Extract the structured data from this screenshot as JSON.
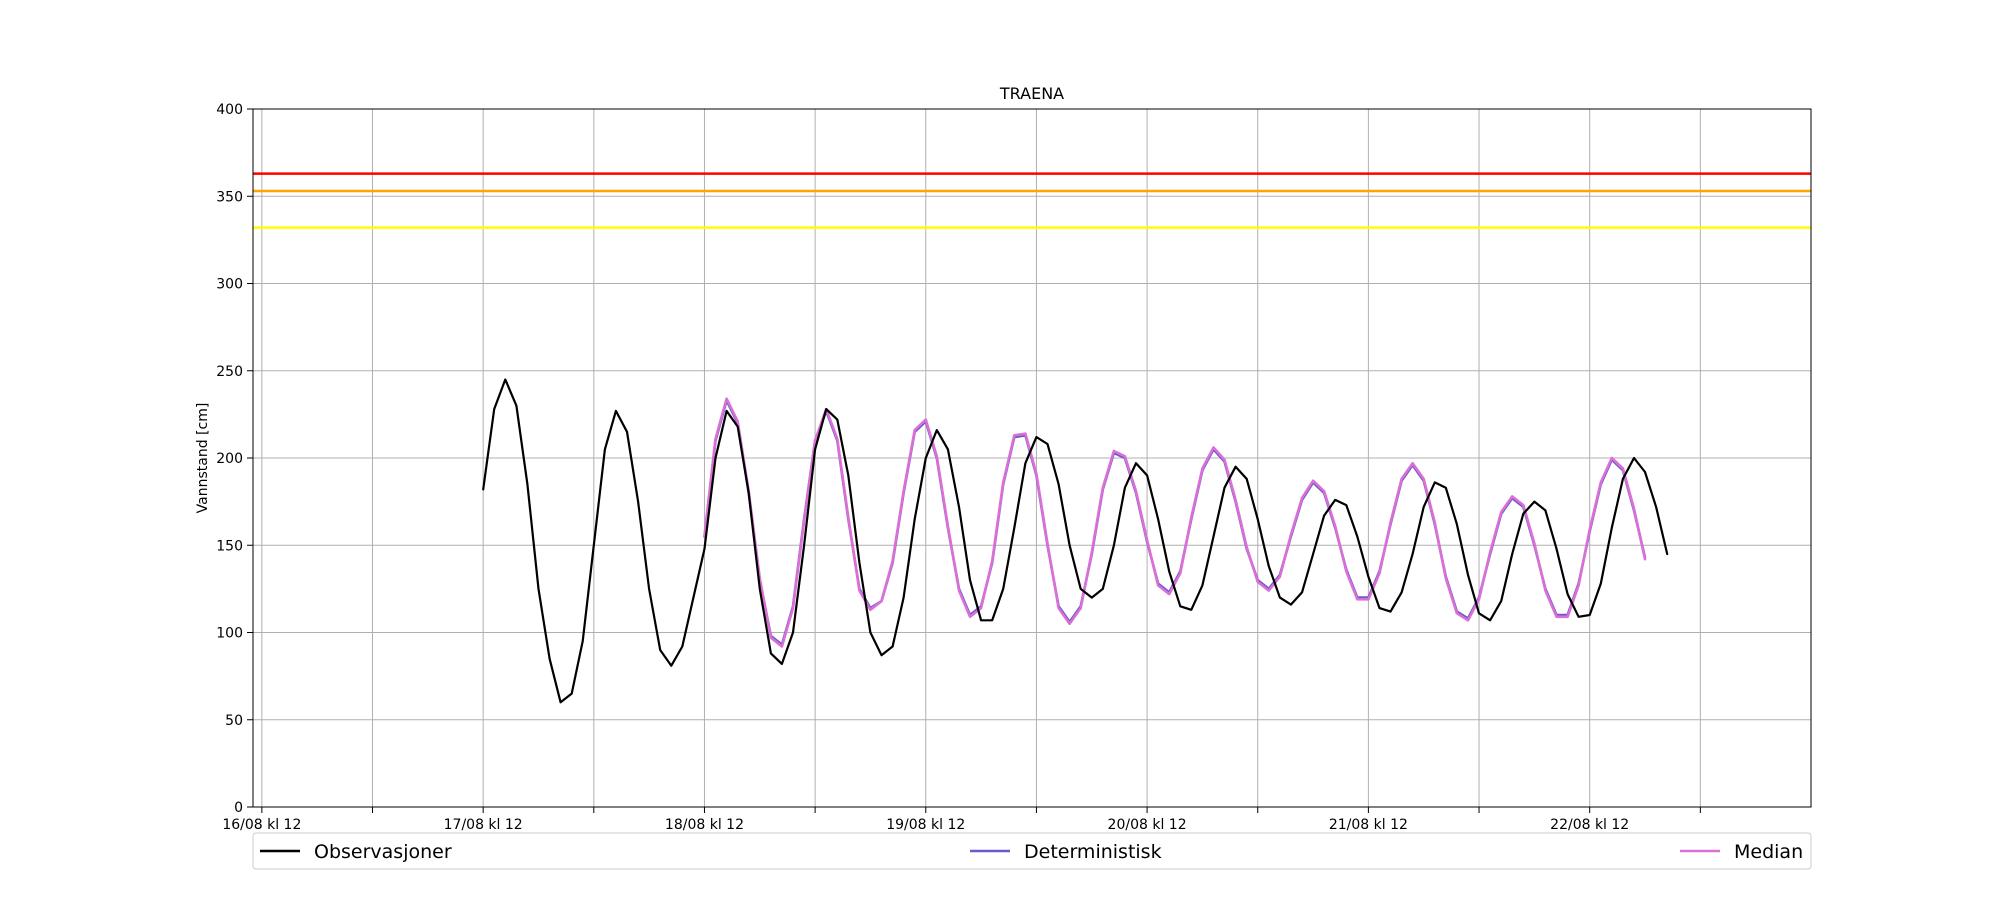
{
  "chart_data": {
    "type": "line",
    "title": "TRAENA",
    "xlabel": "",
    "ylabel": "Vannstand [cm]",
    "ylim": [
      0,
      400
    ],
    "yticks": [
      0,
      50,
      100,
      150,
      200,
      250,
      300,
      350,
      400
    ],
    "xlim": [
      -0.04,
      7.0
    ],
    "xticks": [
      {
        "x": 0,
        "label": "16/08 kl 12"
      },
      {
        "x": 0.5,
        "label": ""
      },
      {
        "x": 1,
        "label": "17/08 kl 12"
      },
      {
        "x": 1.5,
        "label": ""
      },
      {
        "x": 2,
        "label": "18/08 kl 12"
      },
      {
        "x": 2.5,
        "label": ""
      },
      {
        "x": 3,
        "label": "19/08 kl 12"
      },
      {
        "x": 3.5,
        "label": ""
      },
      {
        "x": 4,
        "label": "20/08 kl 12"
      },
      {
        "x": 4.5,
        "label": ""
      },
      {
        "x": 5,
        "label": "21/08 kl 12"
      },
      {
        "x": 5.5,
        "label": ""
      },
      {
        "x": 6,
        "label": "22/08 kl 12"
      },
      {
        "x": 6.5,
        "label": ""
      }
    ],
    "grid": true,
    "legend_position": "bottom",
    "thresholds": [
      {
        "value": 363,
        "color": "#ff0000"
      },
      {
        "value": 353,
        "color": "#ffa500"
      },
      {
        "value": 332,
        "color": "#ffff00"
      }
    ],
    "series": [
      {
        "name": "Observasjoner",
        "color": "#000000",
        "points": [
          [
            1.0,
            182
          ],
          [
            1.05,
            228
          ],
          [
            1.1,
            245
          ],
          [
            1.15,
            230
          ],
          [
            1.2,
            185
          ],
          [
            1.25,
            125
          ],
          [
            1.3,
            85
          ],
          [
            1.35,
            60
          ],
          [
            1.4,
            65
          ],
          [
            1.45,
            95
          ],
          [
            1.5,
            150
          ],
          [
            1.55,
            205
          ],
          [
            1.6,
            227
          ],
          [
            1.65,
            215
          ],
          [
            1.7,
            175
          ],
          [
            1.75,
            125
          ],
          [
            1.8,
            90
          ],
          [
            1.85,
            81
          ],
          [
            1.9,
            92
          ],
          [
            1.95,
            120
          ],
          [
            2.0,
            148
          ],
          [
            2.05,
            200
          ],
          [
            2.1,
            227
          ],
          [
            2.15,
            218
          ],
          [
            2.2,
            180
          ],
          [
            2.25,
            125
          ],
          [
            2.3,
            88
          ],
          [
            2.35,
            82
          ],
          [
            2.4,
            100
          ],
          [
            2.45,
            150
          ],
          [
            2.5,
            205
          ],
          [
            2.55,
            228
          ],
          [
            2.6,
            222
          ],
          [
            2.65,
            190
          ],
          [
            2.7,
            140
          ],
          [
            2.75,
            100
          ],
          [
            2.8,
            87
          ],
          [
            2.85,
            92
          ],
          [
            2.9,
            120
          ],
          [
            2.95,
            165
          ],
          [
            3.0,
            200
          ],
          [
            3.05,
            216
          ],
          [
            3.1,
            205
          ],
          [
            3.15,
            172
          ],
          [
            3.2,
            130
          ],
          [
            3.25,
            107
          ],
          [
            3.3,
            107
          ],
          [
            3.35,
            125
          ],
          [
            3.4,
            160
          ],
          [
            3.45,
            197
          ],
          [
            3.5,
            212
          ],
          [
            3.55,
            208
          ],
          [
            3.6,
            185
          ],
          [
            3.65,
            150
          ],
          [
            3.7,
            125
          ],
          [
            3.75,
            120
          ],
          [
            3.8,
            125
          ],
          [
            3.85,
            150
          ],
          [
            3.9,
            183
          ],
          [
            3.95,
            197
          ],
          [
            4.0,
            190
          ],
          [
            4.05,
            165
          ],
          [
            4.1,
            135
          ],
          [
            4.15,
            115
          ],
          [
            4.2,
            113
          ],
          [
            4.25,
            127
          ],
          [
            4.3,
            155
          ],
          [
            4.35,
            183
          ],
          [
            4.4,
            195
          ],
          [
            4.45,
            188
          ],
          [
            4.5,
            165
          ],
          [
            4.55,
            138
          ],
          [
            4.6,
            120
          ],
          [
            4.65,
            116
          ],
          [
            4.7,
            123
          ],
          [
            4.75,
            145
          ],
          [
            4.8,
            167
          ],
          [
            4.85,
            176
          ],
          [
            4.9,
            173
          ],
          [
            4.95,
            155
          ],
          [
            5.0,
            132
          ],
          [
            5.05,
            114
          ],
          [
            5.1,
            112
          ],
          [
            5.15,
            123
          ],
          [
            5.2,
            145
          ],
          [
            5.25,
            172
          ],
          [
            5.3,
            186
          ],
          [
            5.35,
            183
          ],
          [
            5.4,
            162
          ],
          [
            5.45,
            133
          ],
          [
            5.5,
            111
          ],
          [
            5.55,
            107
          ],
          [
            5.6,
            118
          ],
          [
            5.65,
            145
          ],
          [
            5.7,
            168
          ],
          [
            5.75,
            175
          ],
          [
            5.8,
            170
          ],
          [
            5.85,
            148
          ],
          [
            5.9,
            122
          ],
          [
            5.95,
            109
          ],
          [
            6.0,
            110
          ],
          [
            6.05,
            128
          ],
          [
            6.1,
            160
          ],
          [
            6.15,
            188
          ],
          [
            6.2,
            200
          ],
          [
            6.25,
            192
          ],
          [
            6.3,
            172
          ],
          [
            6.35,
            145
          ]
        ]
      },
      {
        "name": "Deterministisk",
        "color": "#6a5acd",
        "points": [
          [
            2.0,
            155
          ],
          [
            2.05,
            210
          ],
          [
            2.1,
            233
          ],
          [
            2.15,
            220
          ],
          [
            2.2,
            180
          ],
          [
            2.25,
            130
          ],
          [
            2.3,
            98
          ],
          [
            2.35,
            93
          ],
          [
            2.4,
            115
          ],
          [
            2.45,
            165
          ],
          [
            2.5,
            210
          ],
          [
            2.55,
            227
          ],
          [
            2.6,
            210
          ],
          [
            2.65,
            165
          ],
          [
            2.7,
            125
          ],
          [
            2.75,
            114
          ],
          [
            2.8,
            118
          ],
          [
            2.85,
            140
          ],
          [
            2.9,
            180
          ],
          [
            2.95,
            215
          ],
          [
            3.0,
            221
          ],
          [
            3.05,
            200
          ],
          [
            3.1,
            160
          ],
          [
            3.15,
            125
          ],
          [
            3.2,
            110
          ],
          [
            3.25,
            115
          ],
          [
            3.3,
            140
          ],
          [
            3.35,
            185
          ],
          [
            3.4,
            212
          ],
          [
            3.45,
            213
          ],
          [
            3.5,
            190
          ],
          [
            3.55,
            150
          ],
          [
            3.6,
            115
          ],
          [
            3.65,
            106
          ],
          [
            3.7,
            115
          ],
          [
            3.75,
            145
          ],
          [
            3.8,
            182
          ],
          [
            3.85,
            203
          ],
          [
            3.9,
            200
          ],
          [
            3.95,
            180
          ],
          [
            4.0,
            152
          ],
          [
            4.05,
            128
          ],
          [
            4.1,
            123
          ],
          [
            4.15,
            135
          ],
          [
            4.2,
            165
          ],
          [
            4.25,
            193
          ],
          [
            4.3,
            205
          ],
          [
            4.35,
            198
          ],
          [
            4.4,
            175
          ],
          [
            4.45,
            148
          ],
          [
            4.5,
            130
          ],
          [
            4.55,
            125
          ],
          [
            4.6,
            133
          ],
          [
            4.65,
            155
          ],
          [
            4.7,
            176
          ],
          [
            4.75,
            186
          ],
          [
            4.8,
            180
          ],
          [
            4.85,
            160
          ],
          [
            4.9,
            136
          ],
          [
            4.95,
            120
          ],
          [
            5.0,
            120
          ],
          [
            5.05,
            135
          ],
          [
            5.1,
            162
          ],
          [
            5.15,
            187
          ],
          [
            5.2,
            196
          ],
          [
            5.25,
            187
          ],
          [
            5.3,
            162
          ],
          [
            5.35,
            132
          ],
          [
            5.4,
            112
          ],
          [
            5.45,
            108
          ],
          [
            5.5,
            120
          ],
          [
            5.55,
            145
          ],
          [
            5.6,
            168
          ],
          [
            5.65,
            177
          ],
          [
            5.7,
            172
          ],
          [
            5.75,
            150
          ],
          [
            5.8,
            125
          ],
          [
            5.85,
            110
          ],
          [
            5.9,
            110
          ],
          [
            5.95,
            128
          ],
          [
            6.0,
            158
          ],
          [
            6.05,
            185
          ],
          [
            6.1,
            199
          ],
          [
            6.15,
            193
          ],
          [
            6.2,
            170
          ],
          [
            6.25,
            143
          ]
        ]
      },
      {
        "name": "Median",
        "color": "#da70d6",
        "points": [
          [
            2.0,
            155
          ],
          [
            2.05,
            211
          ],
          [
            2.1,
            234
          ],
          [
            2.15,
            221
          ],
          [
            2.2,
            181
          ],
          [
            2.25,
            131
          ],
          [
            2.3,
            97
          ],
          [
            2.35,
            92
          ],
          [
            2.4,
            114
          ],
          [
            2.45,
            164
          ],
          [
            2.5,
            210
          ],
          [
            2.55,
            228
          ],
          [
            2.6,
            211
          ],
          [
            2.65,
            166
          ],
          [
            2.7,
            124
          ],
          [
            2.75,
            113
          ],
          [
            2.8,
            118
          ],
          [
            2.85,
            141
          ],
          [
            2.9,
            181
          ],
          [
            2.95,
            216
          ],
          [
            3.0,
            222
          ],
          [
            3.05,
            201
          ],
          [
            3.1,
            161
          ],
          [
            3.15,
            124
          ],
          [
            3.2,
            109
          ],
          [
            3.25,
            114
          ],
          [
            3.3,
            141
          ],
          [
            3.35,
            186
          ],
          [
            3.4,
            213
          ],
          [
            3.45,
            214
          ],
          [
            3.5,
            191
          ],
          [
            3.55,
            151
          ],
          [
            3.6,
            114
          ],
          [
            3.65,
            105
          ],
          [
            3.7,
            114
          ],
          [
            3.75,
            146
          ],
          [
            3.8,
            183
          ],
          [
            3.85,
            204
          ],
          [
            3.9,
            201
          ],
          [
            3.95,
            181
          ],
          [
            4.0,
            153
          ],
          [
            4.05,
            127
          ],
          [
            4.1,
            122
          ],
          [
            4.15,
            134
          ],
          [
            4.2,
            166
          ],
          [
            4.25,
            194
          ],
          [
            4.3,
            206
          ],
          [
            4.35,
            199
          ],
          [
            4.4,
            176
          ],
          [
            4.45,
            149
          ],
          [
            4.5,
            129
          ],
          [
            4.55,
            124
          ],
          [
            4.6,
            132
          ],
          [
            4.65,
            156
          ],
          [
            4.7,
            177
          ],
          [
            4.75,
            187
          ],
          [
            4.8,
            181
          ],
          [
            4.85,
            161
          ],
          [
            4.9,
            135
          ],
          [
            4.95,
            119
          ],
          [
            5.0,
            119
          ],
          [
            5.05,
            134
          ],
          [
            5.1,
            163
          ],
          [
            5.15,
            188
          ],
          [
            5.2,
            197
          ],
          [
            5.25,
            188
          ],
          [
            5.3,
            163
          ],
          [
            5.35,
            131
          ],
          [
            5.4,
            111
          ],
          [
            5.45,
            107
          ],
          [
            5.5,
            119
          ],
          [
            5.55,
            146
          ],
          [
            5.6,
            169
          ],
          [
            5.65,
            178
          ],
          [
            5.7,
            173
          ],
          [
            5.75,
            151
          ],
          [
            5.8,
            124
          ],
          [
            5.85,
            109
          ],
          [
            5.9,
            109
          ],
          [
            5.95,
            127
          ],
          [
            6.0,
            159
          ],
          [
            6.05,
            186
          ],
          [
            6.1,
            200
          ],
          [
            6.15,
            194
          ],
          [
            6.2,
            171
          ],
          [
            6.25,
            142
          ]
        ]
      }
    ]
  }
}
